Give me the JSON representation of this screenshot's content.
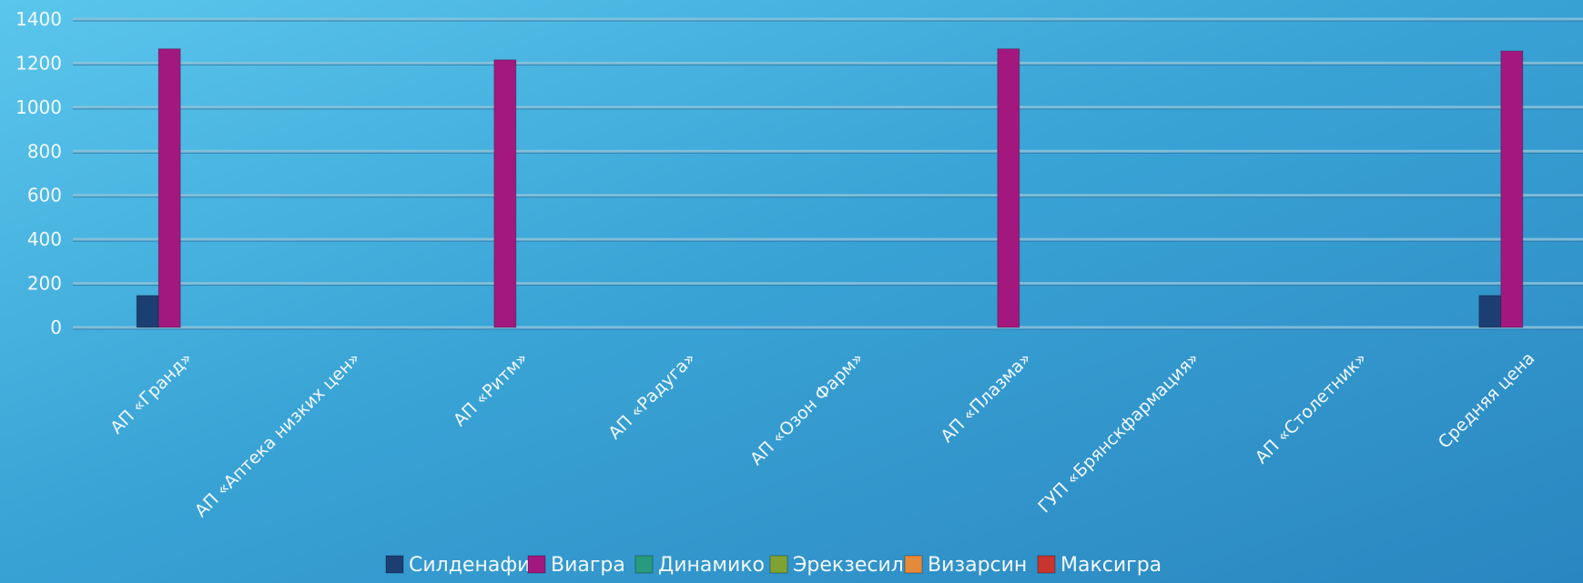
{
  "chart_data": {
    "type": "bar",
    "title": "",
    "xlabel": "",
    "ylabel": "",
    "ylim": [
      0,
      1400
    ],
    "yticks": [
      0,
      200,
      400,
      600,
      800,
      1000,
      1200,
      1400
    ],
    "grid": true,
    "legend_position": "bottom",
    "categories": [
      "АП «Гранд»",
      "АП «Аптека низких цен»",
      "АП «Ритм»",
      "АП «Радуга»",
      "АП «Озон Фарм»",
      "АП «Плазма»",
      "ГУП «Брянскфармация»",
      "АП «Столетник»",
      "Средняя цена"
    ],
    "series": [
      {
        "name": "Силденафил",
        "color": "#1c3f73",
        "values": [
          145,
          null,
          null,
          null,
          null,
          null,
          null,
          null,
          145
        ]
      },
      {
        "name": "Виагра",
        "color": "#a3187f",
        "values": [
          1265,
          null,
          1215,
          null,
          null,
          1265,
          null,
          null,
          1255
        ]
      },
      {
        "name": "Динамико",
        "color": "#2a9a7e",
        "values": [
          null,
          null,
          null,
          null,
          null,
          null,
          null,
          null,
          null
        ]
      },
      {
        "name": "Эрекзесил",
        "color": "#7fa332",
        "values": [
          null,
          null,
          null,
          null,
          null,
          null,
          null,
          null,
          null
        ]
      },
      {
        "name": "Визарсин",
        "color": "#e58a3a",
        "values": [
          null,
          null,
          null,
          null,
          null,
          null,
          null,
          null,
          null
        ]
      },
      {
        "name": "Максигра",
        "color": "#c8342e",
        "values": [
          null,
          null,
          null,
          null,
          null,
          null,
          null,
          null,
          null
        ]
      }
    ]
  }
}
